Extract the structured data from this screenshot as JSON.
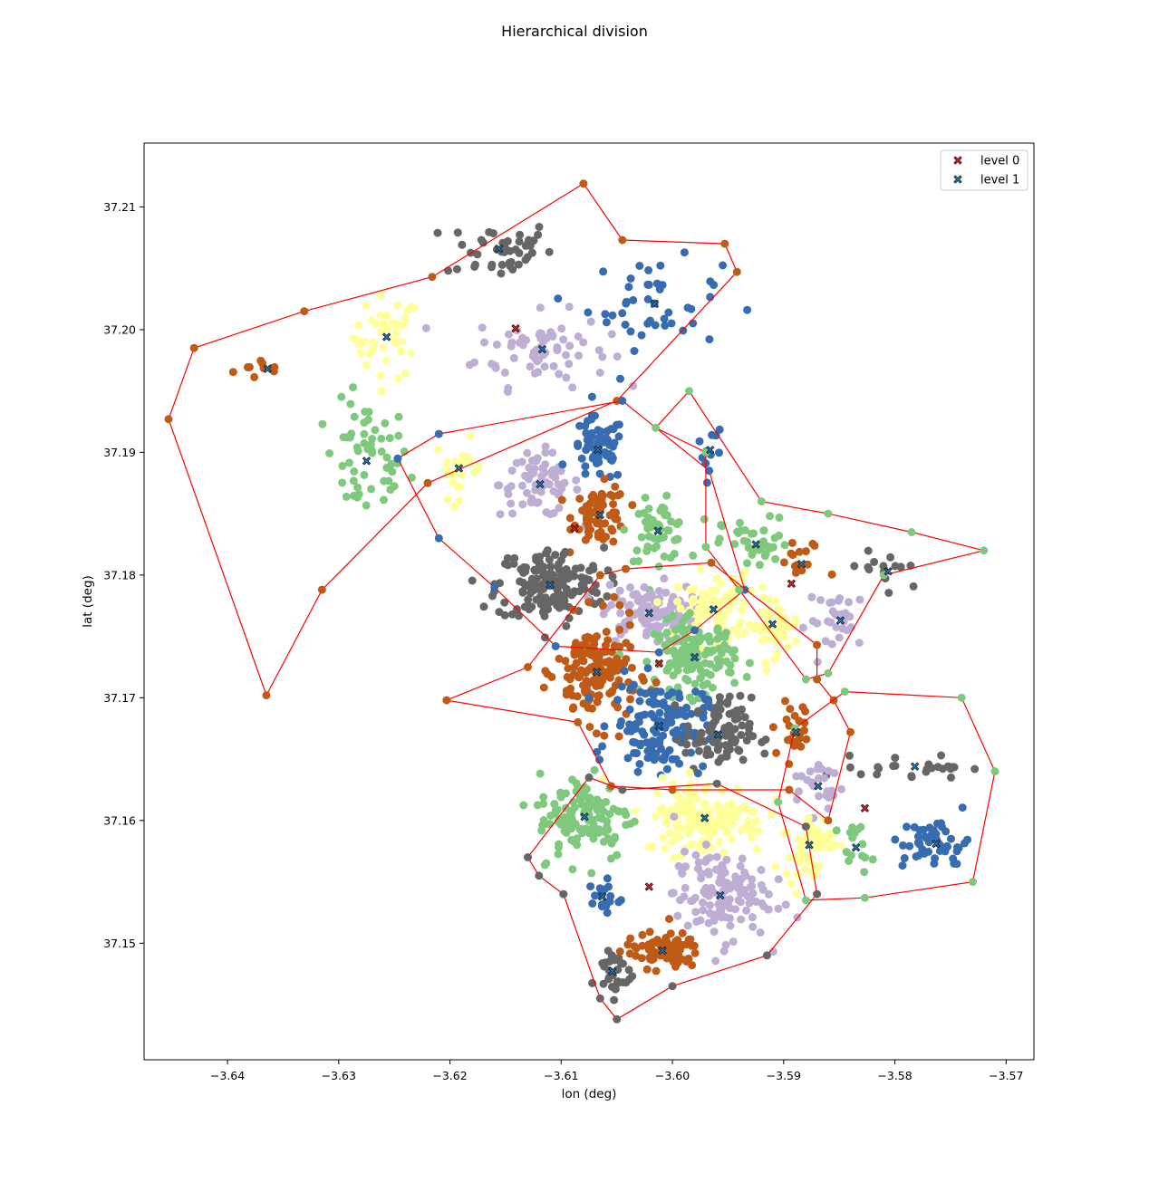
{
  "chart_data": {
    "type": "scatter",
    "title": "Hierarchical division",
    "xlabel": "lon (deg)",
    "ylabel": "lat (deg)",
    "xlim": [
      -3.6475,
      -3.5675
    ],
    "ylim": [
      37.1405,
      37.2152
    ],
    "x_ticks": [
      -3.64,
      -3.63,
      -3.62,
      -3.61,
      -3.6,
      -3.59,
      -3.58,
      -3.57
    ],
    "x_tick_labels": [
      "−3.64",
      "−3.63",
      "−3.62",
      "−3.61",
      "−3.60",
      "−3.59",
      "−3.58",
      "−3.57"
    ],
    "y_ticks": [
      37.15,
      37.16,
      37.17,
      37.18,
      37.19,
      37.2,
      37.21
    ],
    "y_tick_labels": [
      "37.15",
      "37.16",
      "37.17",
      "37.18",
      "37.19",
      "37.20",
      "37.21"
    ],
    "grid": false,
    "legend_position": "top-right",
    "colors": {
      "hull": "#ff0000",
      "level0_marker": "#e31a1c",
      "level1_marker": "#1f77b4",
      "green": "#7fc97f",
      "purple": "#beaed4",
      "yellow": "#ffff99",
      "blue": "#386cb0",
      "orange": "#bf5b17",
      "gray": "#666666"
    },
    "legend": [
      {
        "label": "level 0",
        "marker": "x",
        "color": "#e31a1c"
      },
      {
        "label": "level 1",
        "marker": "x",
        "color": "#1f77b4"
      }
    ],
    "series": [
      {
        "name": "level 0",
        "marker": "x",
        "color": "#e31a1c",
        "points": [
          [
            -3.6141,
            37.2001
          ],
          [
            -3.6088,
            37.1838
          ],
          [
            -3.6012,
            37.1728
          ],
          [
            -3.6021,
            37.1546
          ],
          [
            -3.5827,
            37.161
          ],
          [
            -3.5893,
            37.1793
          ]
        ]
      },
      {
        "name": "level 1",
        "marker": "x",
        "color": "#1f77b4",
        "points": [
          [
            -3.6364,
            37.1968
          ],
          [
            -3.6257,
            37.1994
          ],
          [
            -3.6275,
            37.1893
          ],
          [
            -3.6156,
            37.2066
          ],
          [
            -3.6117,
            37.1984
          ],
          [
            -3.6192,
            37.1887
          ],
          [
            -3.6119,
            37.1874
          ],
          [
            -3.6067,
            37.1902
          ],
          [
            -3.6065,
            37.1849
          ],
          [
            -3.6013,
            37.1836
          ],
          [
            -3.6016,
            37.2021
          ],
          [
            -3.611,
            37.1792
          ],
          [
            -3.6021,
            37.1769
          ],
          [
            -3.5966,
            37.1902
          ],
          [
            -3.5925,
            37.1825
          ],
          [
            -3.5884,
            37.1809
          ],
          [
            -3.5806,
            37.1803
          ],
          [
            -3.5963,
            37.1772
          ],
          [
            -3.591,
            37.176
          ],
          [
            -3.5849,
            37.1763
          ],
          [
            -3.598,
            37.1733
          ],
          [
            -3.6068,
            37.1721
          ],
          [
            -3.6012,
            37.1677
          ],
          [
            -3.5959,
            37.167
          ],
          [
            -3.5889,
            37.1672
          ],
          [
            -3.5782,
            37.1644
          ],
          [
            -3.5869,
            37.1628
          ],
          [
            -3.6079,
            37.1603
          ],
          [
            -3.5971,
            37.1602
          ],
          [
            -3.5877,
            37.158
          ],
          [
            -3.5835,
            37.1578
          ],
          [
            -3.5763,
            37.1581
          ],
          [
            -3.6063,
            37.1538
          ],
          [
            -3.5957,
            37.1539
          ],
          [
            -3.6054,
            37.1477
          ],
          [
            -3.6009,
            37.1494
          ]
        ]
      }
    ],
    "clusters": [
      {
        "color": "#bf5b17",
        "center": [
          -3.6364,
          37.1968
        ],
        "spread": [
          0.0025,
          0.0008
        ],
        "count": 10
      },
      {
        "color": "#ffff99",
        "center": [
          -3.6257,
          37.1994
        ],
        "spread": [
          0.0025,
          0.0028
        ],
        "count": 40
      },
      {
        "color": "#7fc97f",
        "center": [
          -3.6275,
          37.1893
        ],
        "spread": [
          0.0032,
          0.004
        ],
        "count": 55
      },
      {
        "color": "#666666",
        "center": [
          -3.6156,
          37.2066
        ],
        "spread": [
          0.004,
          0.002
        ],
        "count": 45
      },
      {
        "color": "#beaed4",
        "center": [
          -3.6117,
          37.1984
        ],
        "spread": [
          0.005,
          0.0025
        ],
        "count": 70
      },
      {
        "color": "#386cb0",
        "center": [
          -3.6016,
          37.2021
        ],
        "spread": [
          0.005,
          0.003
        ],
        "count": 45
      },
      {
        "color": "#ffff99",
        "center": [
          -3.6192,
          37.1887
        ],
        "spread": [
          0.0018,
          0.002
        ],
        "count": 25
      },
      {
        "color": "#beaed4",
        "center": [
          -3.6119,
          37.1874
        ],
        "spread": [
          0.003,
          0.0022
        ],
        "count": 70
      },
      {
        "color": "#386cb0",
        "center": [
          -3.6067,
          37.1902
        ],
        "spread": [
          0.002,
          0.0022
        ],
        "count": 60
      },
      {
        "color": "#bf5b17",
        "center": [
          -3.6065,
          37.1849
        ],
        "spread": [
          0.002,
          0.002
        ],
        "count": 70
      },
      {
        "color": "#7fc97f",
        "center": [
          -3.6013,
          37.1836
        ],
        "spread": [
          0.0022,
          0.002
        ],
        "count": 55
      },
      {
        "color": "#666666",
        "center": [
          -3.611,
          37.1792
        ],
        "spread": [
          0.004,
          0.0025
        ],
        "count": 170
      },
      {
        "color": "#beaed4",
        "center": [
          -3.6021,
          37.1769
        ],
        "spread": [
          0.0035,
          0.002
        ],
        "count": 110
      },
      {
        "color": "#386cb0",
        "center": [
          -3.5966,
          37.1902
        ],
        "spread": [
          0.001,
          0.002
        ],
        "count": 10
      },
      {
        "color": "#7fc97f",
        "center": [
          -3.5925,
          37.1825
        ],
        "spread": [
          0.0025,
          0.0018
        ],
        "count": 40
      },
      {
        "color": "#bf5b17",
        "center": [
          -3.5884,
          37.1809
        ],
        "spread": [
          0.002,
          0.0015
        ],
        "count": 15
      },
      {
        "color": "#666666",
        "center": [
          -3.5806,
          37.1803
        ],
        "spread": [
          0.0035,
          0.0018
        ],
        "count": 15
      },
      {
        "color": "#ffff99",
        "center": [
          -3.5963,
          37.1772
        ],
        "spread": [
          0.0028,
          0.0025
        ],
        "count": 80
      },
      {
        "color": "#ffff99",
        "center": [
          -3.591,
          37.176
        ],
        "spread": [
          0.002,
          0.002
        ],
        "count": 45
      },
      {
        "color": "#beaed4",
        "center": [
          -3.5849,
          37.1763
        ],
        "spread": [
          0.0025,
          0.002
        ],
        "count": 30
      },
      {
        "color": "#7fc97f",
        "center": [
          -3.598,
          37.1733
        ],
        "spread": [
          0.003,
          0.0025
        ],
        "count": 140
      },
      {
        "color": "#bf5b17",
        "center": [
          -3.6068,
          37.1721
        ],
        "spread": [
          0.003,
          0.0035
        ],
        "count": 160
      },
      {
        "color": "#386cb0",
        "center": [
          -3.6012,
          37.1677
        ],
        "spread": [
          0.0035,
          0.003
        ],
        "count": 140
      },
      {
        "color": "#666666",
        "center": [
          -3.5959,
          37.167
        ],
        "spread": [
          0.0025,
          0.0025
        ],
        "count": 90
      },
      {
        "color": "#bf5b17",
        "center": [
          -3.5889,
          37.1672
        ],
        "spread": [
          0.0018,
          0.002
        ],
        "count": 25
      },
      {
        "color": "#666666",
        "center": [
          -3.5782,
          37.1644
        ],
        "spread": [
          0.004,
          0.0008
        ],
        "count": 25
      },
      {
        "color": "#beaed4",
        "center": [
          -3.5869,
          37.1628
        ],
        "spread": [
          0.002,
          0.0018
        ],
        "count": 25
      },
      {
        "color": "#7fc97f",
        "center": [
          -3.6079,
          37.1603
        ],
        "spread": [
          0.0035,
          0.003
        ],
        "count": 120
      },
      {
        "color": "#ffff99",
        "center": [
          -3.5971,
          37.1602
        ],
        "spread": [
          0.0045,
          0.0025
        ],
        "count": 150
      },
      {
        "color": "#ffff99",
        "center": [
          -3.5877,
          37.158
        ],
        "spread": [
          0.0018,
          0.0022
        ],
        "count": 50
      },
      {
        "color": "#7fc97f",
        "center": [
          -3.5835,
          37.1578
        ],
        "spread": [
          0.0012,
          0.0015
        ],
        "count": 15
      },
      {
        "color": "#386cb0",
        "center": [
          -3.5763,
          37.1581
        ],
        "spread": [
          0.0025,
          0.0018
        ],
        "count": 50
      },
      {
        "color": "#386cb0",
        "center": [
          -3.6063,
          37.1538
        ],
        "spread": [
          0.0015,
          0.0012
        ],
        "count": 20
      },
      {
        "color": "#beaed4",
        "center": [
          -3.5957,
          37.1539
        ],
        "spread": [
          0.0035,
          0.003
        ],
        "count": 130
      },
      {
        "color": "#666666",
        "center": [
          -3.6054,
          37.1477
        ],
        "spread": [
          0.0015,
          0.0018
        ],
        "count": 30
      },
      {
        "color": "#bf5b17",
        "center": [
          -3.6009,
          37.1494
        ],
        "spread": [
          0.0028,
          0.0012
        ],
        "count": 80
      }
    ],
    "hulls": [
      [
        [
          -3.6453,
          37.1927
        ],
        [
          -3.643,
          37.1985
        ],
        [
          -3.6331,
          37.2015
        ],
        [
          -3.6216,
          37.2043
        ],
        [
          -3.608,
          37.2119
        ],
        [
          -3.6045,
          37.2073
        ],
        [
          -3.5953,
          37.207
        ],
        [
          -3.5942,
          37.2047
        ],
        [
          -3.605,
          37.1942
        ],
        [
          -3.622,
          37.1875
        ],
        [
          -3.6315,
          37.1788
        ],
        [
          -3.6365,
          37.1702
        ]
      ],
      [
        [
          -3.6247,
          37.1895
        ],
        [
          -3.621,
          37.1915
        ],
        [
          -3.6045,
          37.1942
        ],
        [
          -3.5967,
          37.1885
        ],
        [
          -3.5935,
          37.1788
        ],
        [
          -3.598,
          37.1755
        ],
        [
          -3.6012,
          37.1737
        ],
        [
          -3.6105,
          37.1742
        ],
        [
          -3.616,
          37.179
        ],
        [
          -3.621,
          37.183
        ]
      ],
      [
        [
          -3.5985,
          37.195
        ],
        [
          -3.592,
          37.186
        ],
        [
          -3.586,
          37.185
        ],
        [
          -3.5785,
          37.1835
        ],
        [
          -3.572,
          37.182
        ],
        [
          -3.581,
          37.18
        ],
        [
          -3.586,
          37.172
        ],
        [
          -3.588,
          37.1715
        ],
        [
          -3.594,
          37.1788
        ],
        [
          -3.597,
          37.1823
        ],
        [
          -3.597,
          37.19
        ],
        [
          -3.6015,
          37.192
        ]
      ],
      [
        [
          -3.6203,
          37.1698
        ],
        [
          -3.613,
          37.1725
        ],
        [
          -3.6065,
          37.18
        ],
        [
          -3.6042,
          37.1805
        ],
        [
          -3.5965,
          37.181
        ],
        [
          -3.587,
          37.1743
        ],
        [
          -3.587,
          37.1715
        ],
        [
          -3.5855,
          37.1698
        ],
        [
          -3.584,
          37.1672
        ],
        [
          -3.586,
          37.16
        ],
        [
          -3.5895,
          37.1625
        ],
        [
          -3.6,
          37.1625
        ],
        [
          -3.6055,
          37.1628
        ],
        [
          -3.6085,
          37.168
        ]
      ],
      [
        [
          -3.5845,
          37.1705
        ],
        [
          -3.574,
          37.17
        ],
        [
          -3.571,
          37.164
        ],
        [
          -3.573,
          37.155
        ],
        [
          -3.5827,
          37.1537
        ],
        [
          -3.588,
          37.1535
        ],
        [
          -3.5905,
          37.1615
        ],
        [
          -3.589,
          37.1675
        ]
      ],
      [
        [
          -3.613,
          37.157
        ],
        [
          -3.6075,
          37.1635
        ],
        [
          -3.6045,
          37.1625
        ],
        [
          -3.596,
          37.163
        ],
        [
          -3.588,
          37.1595
        ],
        [
          -3.587,
          37.154
        ],
        [
          -3.5915,
          37.149
        ],
        [
          -3.6,
          37.1465
        ],
        [
          -3.605,
          37.1438
        ],
        [
          -3.6065,
          37.1455
        ],
        [
          -3.6098,
          37.154
        ],
        [
          -3.612,
          37.1555
        ]
      ]
    ]
  }
}
